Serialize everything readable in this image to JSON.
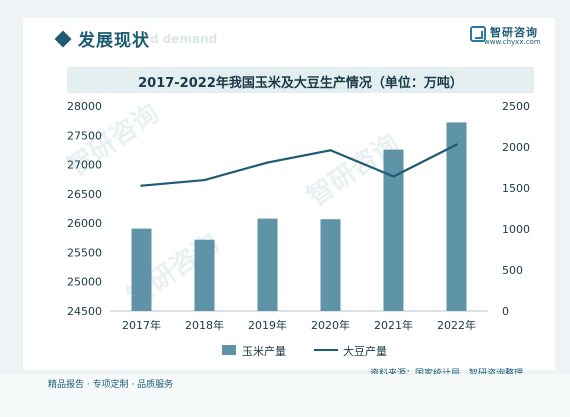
{
  "header": {
    "title": "发展现状",
    "bg_text": "d demand"
  },
  "logo": {
    "name": "智研咨询",
    "url": "www.chyxx.com",
    "icon": "chyxx-logo-icon"
  },
  "chart_data": {
    "type": "bar",
    "title": "2017-2022年我国玉米及大豆生产情况（单位：万吨）",
    "categories": [
      "2017年",
      "2018年",
      "2019年",
      "2020年",
      "2021年",
      "2022年"
    ],
    "series": [
      {
        "name": "玉米产量",
        "type": "bar",
        "axis": "left",
        "color": "#5f93a8",
        "values": [
          25907,
          25717,
          26078,
          26067,
          27255,
          27720
        ]
      },
      {
        "name": "大豆产量",
        "type": "line",
        "axis": "right",
        "color": "#1d5c73",
        "values": [
          1528,
          1597,
          1810,
          1960,
          1640,
          2029
        ]
      }
    ],
    "y_left": {
      "min": 24500,
      "max": 28000,
      "ticks": [
        24500,
        25000,
        25500,
        26000,
        26500,
        27000,
        27500,
        28000
      ]
    },
    "y_right": {
      "min": 0,
      "max": 2500,
      "ticks": [
        0,
        500,
        1000,
        1500,
        2000,
        2500
      ]
    },
    "grid": false,
    "legend_position": "bottom"
  },
  "source": "资料来源：国家统计局、智研咨询整理",
  "footer": {
    "text": "精品报告 · 专项定制 · 品质服务"
  }
}
